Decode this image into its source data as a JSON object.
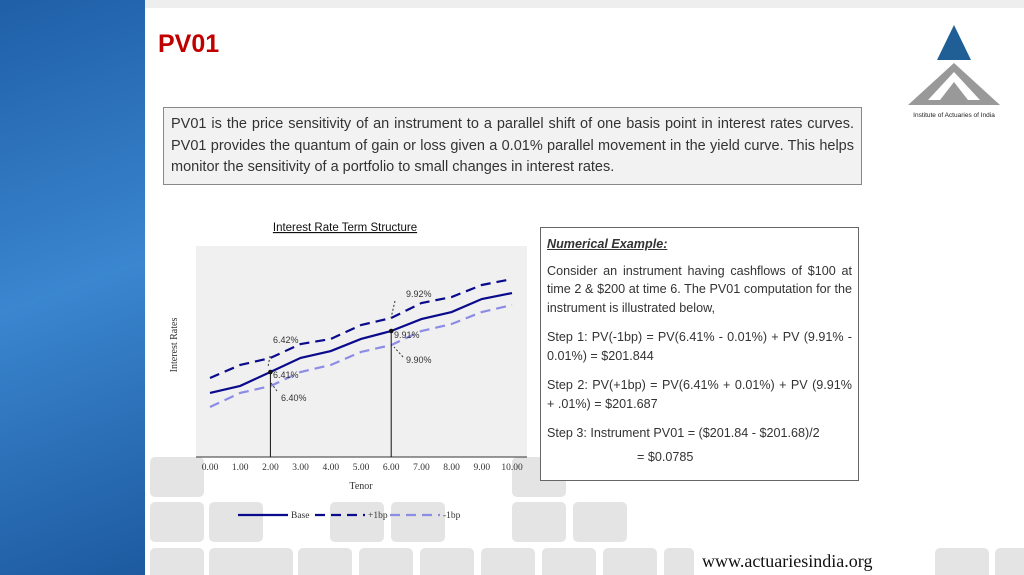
{
  "header": {
    "title": "PV01",
    "logo_text": "Institute of Actuaries of India"
  },
  "intro": "PV01 is the price sensitivity of an instrument to a parallel shift of one basis point in interest rates curves. PV01 provides the quantum of gain or loss given a 0.01% parallel movement in the yield curve. This helps monitor the sensitivity of a portfolio to small changes in interest rates.",
  "chart_data": {
    "type": "line",
    "title": "Interest Rate Term Structure",
    "x_label": "Tenor",
    "y_label": "Interest Rates",
    "x": [
      0,
      1,
      2,
      3,
      4,
      5,
      6,
      7,
      8,
      9,
      10
    ],
    "xlim": [
      0,
      10
    ],
    "xticks": [
      {
        "value": 0,
        "label": "0.00"
      },
      {
        "value": 1,
        "label": "1.00"
      },
      {
        "value": 2,
        "label": "2.00"
      },
      {
        "value": 3,
        "label": "3.00"
      },
      {
        "value": 4,
        "label": "4.00"
      },
      {
        "value": 5,
        "label": "5.00"
      },
      {
        "value": 6,
        "label": "6.00"
      },
      {
        "value": 7,
        "label": "7.00"
      },
      {
        "value": 8,
        "label": "8.00"
      },
      {
        "value": 9,
        "label": "9.00"
      },
      {
        "value": 10,
        "label": "10.00"
      }
    ],
    "ylim": [
      -0.85,
      17.17
    ],
    "series": [
      {
        "name": "Base",
        "color": "#0a0a8c",
        "dash": "solid",
        "values": [
          4.62,
          5.22,
          6.41,
          7.61,
          8.2,
          9.23,
          9.91,
          10.93,
          11.53,
          12.64,
          13.15
        ]
      },
      {
        "name": "+1bp",
        "color": "#0a0a8c",
        "dash": "dashed",
        "values": [
          5.9,
          7.01,
          7.61,
          8.8,
          9.23,
          10.42,
          11.02,
          12.3,
          12.81,
          13.84,
          14.35
        ]
      },
      {
        "name": "-1bp",
        "color": "#8c8ce6",
        "dash": "dashed",
        "values": [
          3.42,
          4.62,
          5.21,
          6.41,
          7.01,
          8.12,
          8.71,
          9.91,
          10.51,
          11.53,
          12.13
        ]
      }
    ],
    "markers": [
      2,
      6
    ],
    "annotations": [
      "6.42%",
      "6.41%",
      "6.40%",
      "9.92%",
      "9.91%",
      "9.90%"
    ]
  },
  "example": {
    "heading": "Numerical Example:",
    "paragraphs": [
      "Consider an instrument having cashflows of $100 at time 2 & $200 at time 6. The PV01 computation for the instrument is illustrated below,",
      "Step 1: PV(-1bp) = PV(6.41% - 0.01%) + PV (9.91% - 0.01%) = $201.844",
      "Step 2: PV(+1bp) = PV(6.41% + 0.01%) + PV (9.91% + .01%) = $201.687",
      "Step 3: Instrument PV01 = ($201.84 - $201.68)/2"
    ],
    "result": "= $0.0785"
  },
  "footer": "www.actuariesindia.org"
}
